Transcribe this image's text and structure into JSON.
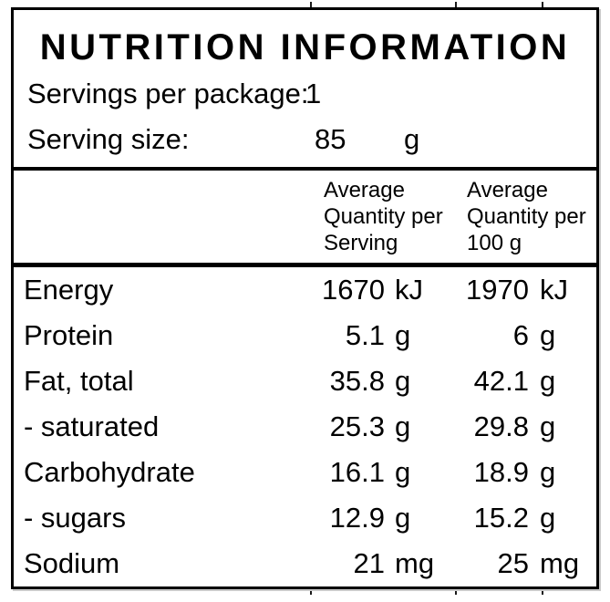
{
  "label": {
    "title": "NUTRITION INFORMATION",
    "servings_per_package": {
      "label": "Servings per package:",
      "value": "1"
    },
    "serving_size": {
      "label": "Serving size:",
      "value": "85",
      "unit": "g"
    },
    "columns": {
      "per_serving": {
        "line1": "Average",
        "line2": "Quantity per",
        "line3": "Serving"
      },
      "per_100g": {
        "line1": "Average",
        "line2": "Quantity per",
        "line3": "100 g"
      }
    },
    "rows": [
      {
        "name": "Energy",
        "per_serving": "1670",
        "per_serving_unit": "kJ",
        "per_100g": "1970",
        "per_100g_unit": "kJ"
      },
      {
        "name": "Protein",
        "per_serving": "5.1",
        "per_serving_unit": "g",
        "per_100g": "6",
        "per_100g_unit": "g"
      },
      {
        "name": "Fat, total",
        "per_serving": "35.8",
        "per_serving_unit": "g",
        "per_100g": "42.1",
        "per_100g_unit": "g"
      },
      {
        "name": "- saturated",
        "per_serving": "25.3",
        "per_serving_unit": "g",
        "per_100g": "29.8",
        "per_100g_unit": "g"
      },
      {
        "name": "Carbohydrate",
        "per_serving": "16.1",
        "per_serving_unit": "g",
        "per_100g": "18.9",
        "per_100g_unit": "g"
      },
      {
        "name": "- sugars",
        "per_serving": "12.9",
        "per_serving_unit": "g",
        "per_100g": "15.2",
        "per_100g_unit": "g"
      },
      {
        "name": "Sodium",
        "per_serving": "21",
        "per_serving_unit": "mg",
        "per_100g": "25",
        "per_100g_unit": "mg"
      }
    ],
    "colors": {
      "text": "#000000",
      "border": "#000000",
      "background": "#ffffff"
    }
  }
}
